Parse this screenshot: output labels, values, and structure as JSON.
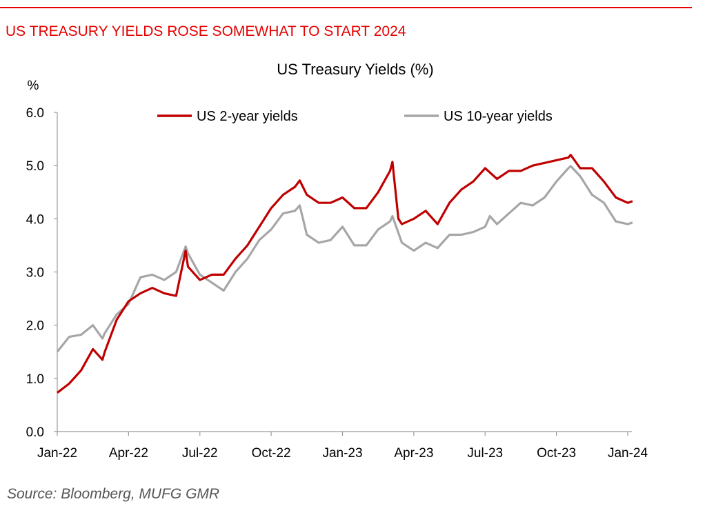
{
  "header": {
    "headline": "US TREASURY YIELDS ROSE SOMEWHAT TO START 2024"
  },
  "footer": {
    "source": "Source: Bloomberg, MUFG GMR"
  },
  "colors": {
    "accent": "#e60000",
    "series_2y": "#c00000",
    "series_10y": "#a6a6a6"
  },
  "chart_data": {
    "type": "line",
    "title": "US Treasury Yields (%)",
    "ylabel": "%",
    "xlabel": "",
    "ylim": [
      0,
      6
    ],
    "yticks": [
      "0.0",
      "1.0",
      "2.0",
      "3.0",
      "4.0",
      "5.0",
      "6.0"
    ],
    "xlim_months_since_jan22": [
      0,
      24
    ],
    "xticks": [
      {
        "month": 0,
        "label": "Jan-22"
      },
      {
        "month": 3,
        "label": "Apr-22"
      },
      {
        "month": 6,
        "label": "Jul-22"
      },
      {
        "month": 9,
        "label": "Oct-22"
      },
      {
        "month": 12,
        "label": "Jan-23"
      },
      {
        "month": 15,
        "label": "Apr-23"
      },
      {
        "month": 18,
        "label": "Jul-23"
      },
      {
        "month": 21,
        "label": "Oct-23"
      },
      {
        "month": 24,
        "label": "Jan-24"
      }
    ],
    "legend_position": "top",
    "grid": false,
    "series": [
      {
        "name": "US 2-year yields",
        "x": [
          0,
          0.5,
          1,
          1.5,
          1.9,
          2,
          2.5,
          3,
          3.5,
          4,
          4.5,
          5,
          5.4,
          5.5,
          6,
          6.5,
          7,
          7.5,
          8,
          8.5,
          9,
          9.5,
          10,
          10.2,
          10.5,
          11,
          11.5,
          12,
          12.5,
          13,
          13.5,
          14,
          14.1,
          14.35,
          14.5,
          15,
          15.5,
          16,
          16.5,
          17,
          17.5,
          18,
          18.5,
          19,
          19.5,
          20,
          20.5,
          21,
          21.5,
          21.6,
          22,
          22.5,
          23,
          23.5,
          24,
          24.2
        ],
        "values": [
          0.73,
          0.9,
          1.15,
          1.55,
          1.35,
          1.5,
          2.1,
          2.45,
          2.6,
          2.7,
          2.6,
          2.55,
          3.4,
          3.1,
          2.85,
          2.95,
          2.95,
          3.25,
          3.5,
          3.85,
          4.2,
          4.45,
          4.6,
          4.72,
          4.45,
          4.3,
          4.3,
          4.4,
          4.2,
          4.2,
          4.5,
          4.9,
          5.07,
          4.0,
          3.9,
          4.0,
          4.15,
          3.9,
          4.3,
          4.55,
          4.7,
          4.95,
          4.75,
          4.9,
          4.9,
          5.0,
          5.05,
          5.1,
          5.15,
          5.2,
          4.95,
          4.95,
          4.7,
          4.4,
          4.3,
          4.33
        ]
      },
      {
        "name": "US 10-year yields",
        "x": [
          0,
          0.5,
          1,
          1.5,
          1.9,
          2,
          2.5,
          3,
          3.5,
          4,
          4.5,
          5,
          5.4,
          5.5,
          6,
          6.5,
          7,
          7.5,
          8,
          8.5,
          9,
          9.5,
          10,
          10.2,
          10.5,
          11,
          11.5,
          12,
          12.5,
          13,
          13.5,
          14,
          14.1,
          14.5,
          15,
          15.5,
          16,
          16.5,
          17,
          17.5,
          18,
          18.2,
          18.5,
          19,
          19.5,
          20,
          20.5,
          21,
          21.5,
          21.6,
          22,
          22.5,
          23,
          23.5,
          24,
          24.2
        ],
        "values": [
          1.5,
          1.78,
          1.82,
          2.0,
          1.75,
          1.85,
          2.2,
          2.4,
          2.9,
          2.95,
          2.85,
          3.0,
          3.48,
          3.35,
          2.95,
          2.8,
          2.65,
          3.0,
          3.25,
          3.6,
          3.8,
          4.1,
          4.15,
          4.25,
          3.7,
          3.55,
          3.6,
          3.85,
          3.5,
          3.5,
          3.8,
          3.95,
          4.05,
          3.55,
          3.4,
          3.55,
          3.45,
          3.7,
          3.7,
          3.75,
          3.85,
          4.05,
          3.9,
          4.1,
          4.3,
          4.25,
          4.4,
          4.7,
          4.95,
          4.99,
          4.8,
          4.45,
          4.3,
          3.95,
          3.9,
          3.93
        ]
      }
    ]
  }
}
